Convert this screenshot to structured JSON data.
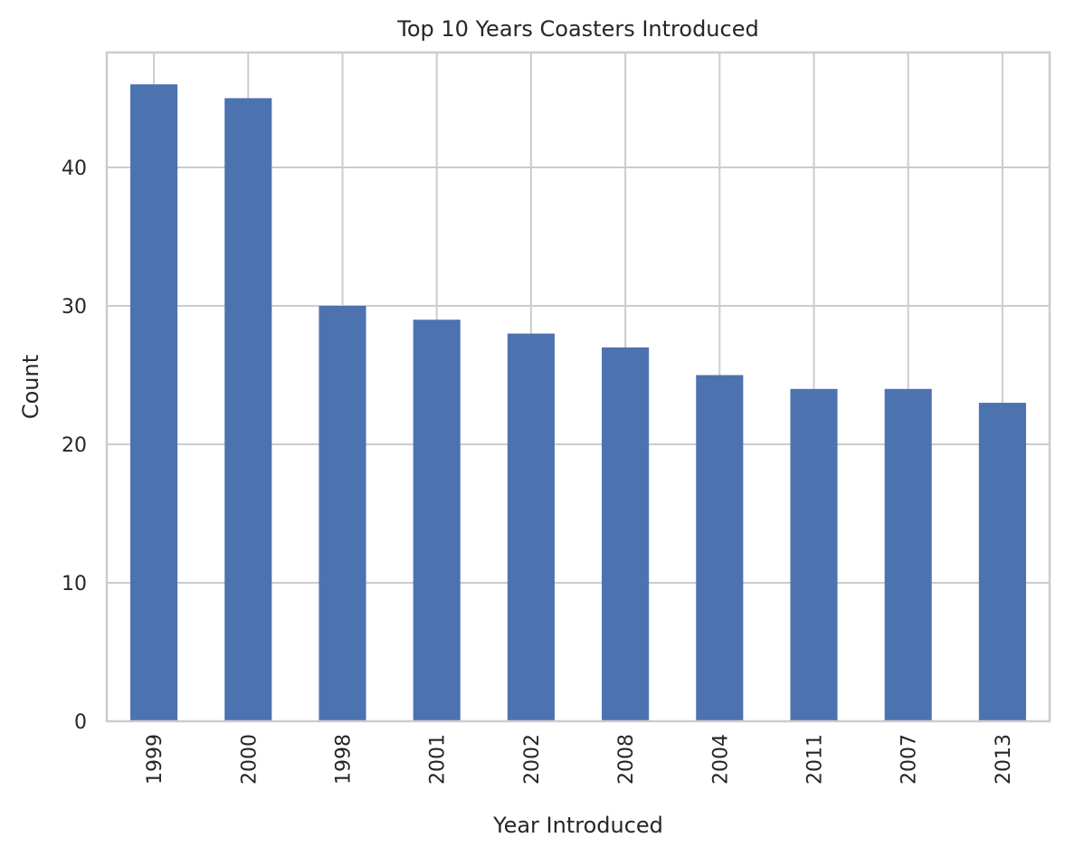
{
  "chart_data": {
    "type": "bar",
    "title": "Top 10 Years Coasters Introduced",
    "xlabel": "Year Introduced",
    "ylabel": "Count",
    "categories": [
      "1999",
      "2000",
      "1998",
      "2001",
      "2002",
      "2008",
      "2004",
      "2011",
      "2007",
      "2013"
    ],
    "values": [
      46,
      45,
      30,
      29,
      28,
      27,
      25,
      24,
      24,
      23
    ],
    "ylim": [
      0,
      48.3
    ],
    "yticks": [
      0,
      10,
      20,
      30,
      40
    ],
    "grid": true,
    "legend": "none",
    "bar_color": "#4c72b0",
    "grid_color": "#cccccc"
  }
}
